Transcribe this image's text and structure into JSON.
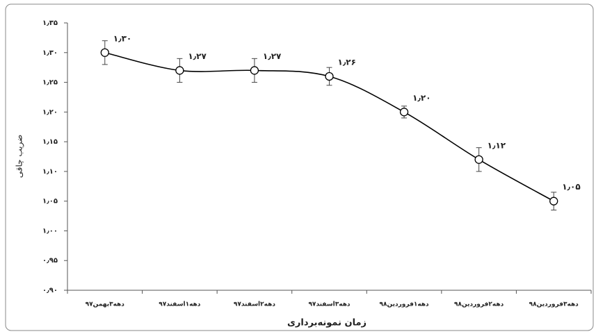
{
  "chart_data": {
    "type": "line",
    "y_label": "ضریب چاقی",
    "x_label": "زمان نمونه‌برداری",
    "categories": [
      "دهه۳بهمن۹۷",
      "دهه۱اسفند۹۷",
      "دهه۲اسفند۹۷",
      "دهه۳اسفند۹۷",
      "دهه۱فروردین۹۸",
      "دهه۲فروردین۹۸",
      "دهه۳فروردین۹۸"
    ],
    "values": [
      1.3,
      1.27,
      1.27,
      1.26,
      1.2,
      1.12,
      1.05
    ],
    "value_labels": [
      "۱٫۳۰",
      "۱٫۲۷",
      "۱٫۲۷",
      "۱٫۲۶",
      "۱٫۲۰",
      "۱٫۱۲",
      "۱٫۰۵"
    ],
    "errors": [
      0.02,
      0.02,
      0.02,
      0.015,
      0.01,
      0.02,
      0.015
    ],
    "color": "#000000",
    "smooth": true,
    "ylim": [
      0.9,
      1.35
    ],
    "yticks": [
      {
        "value": 0.9,
        "label": "۰٫۹۰"
      },
      {
        "value": 0.95,
        "label": "۰٫۹۵"
      },
      {
        "value": 1.0,
        "label": "۱٫۰۰"
      },
      {
        "value": 1.05,
        "label": "۱٫۰۵"
      },
      {
        "value": 1.1,
        "label": "۱٫۱۰"
      },
      {
        "value": 1.15,
        "label": "۱٫۱۵"
      },
      {
        "value": 1.2,
        "label": "۱٫۲۰"
      },
      {
        "value": 1.25,
        "label": "۱٫۲۵"
      },
      {
        "value": 1.3,
        "label": "۱٫۳۰"
      },
      {
        "value": 1.35,
        "label": "۱٫۳۵"
      }
    ],
    "grid": false
  }
}
